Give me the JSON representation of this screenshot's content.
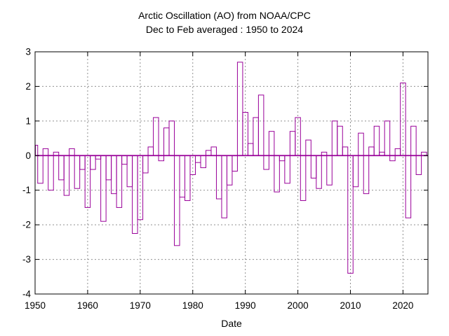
{
  "chart_data": {
    "type": "bar",
    "title": "Arctic Oscillation (AO) from NOAA/CPC",
    "subtitle": "Dec to Feb averaged : 1950 to 2024",
    "xlabel": "Date",
    "ylabel": "",
    "ylim": [
      -4,
      3
    ],
    "xlim": [
      1950,
      2024.5
    ],
    "grid": true,
    "legend": "none",
    "bar_color": "#990099",
    "grid_color": "#909090",
    "axis_color": "#000000",
    "xticks": [
      1950,
      1960,
      1970,
      1980,
      1990,
      2000,
      2010,
      2020
    ],
    "yticks": [
      3,
      2,
      1,
      0,
      -1,
      -2,
      -3,
      -4
    ],
    "years": [
      1950,
      1951,
      1952,
      1953,
      1954,
      1955,
      1956,
      1957,
      1958,
      1959,
      1960,
      1961,
      1962,
      1963,
      1964,
      1965,
      1966,
      1967,
      1968,
      1969,
      1970,
      1971,
      1972,
      1973,
      1974,
      1975,
      1976,
      1977,
      1978,
      1979,
      1980,
      1981,
      1982,
      1983,
      1984,
      1985,
      1986,
      1987,
      1988,
      1989,
      1990,
      1991,
      1992,
      1993,
      1994,
      1995,
      1996,
      1997,
      1998,
      1999,
      2000,
      2001,
      2002,
      2003,
      2004,
      2005,
      2006,
      2007,
      2008,
      2009,
      2010,
      2011,
      2012,
      2013,
      2014,
      2015,
      2016,
      2017,
      2018,
      2019,
      2020,
      2021,
      2022,
      2023,
      2024
    ],
    "values": [
      0.3,
      -0.8,
      0.2,
      -1.0,
      0.1,
      -0.7,
      -1.15,
      0.2,
      -0.95,
      -0.4,
      -1.5,
      -0.4,
      -0.1,
      -1.9,
      -0.7,
      -1.1,
      -1.5,
      -0.25,
      -0.9,
      -2.25,
      -1.85,
      -0.5,
      0.25,
      1.1,
      -0.15,
      0.8,
      1.0,
      -2.6,
      -1.2,
      -1.3,
      -0.55,
      -0.2,
      -0.35,
      0.15,
      0.25,
      -1.25,
      -1.8,
      -0.85,
      -0.45,
      2.7,
      1.25,
      0.35,
      1.1,
      1.75,
      -0.4,
      0.7,
      -1.05,
      -0.15,
      -0.8,
      0.7,
      1.1,
      -1.3,
      0.45,
      -0.65,
      -0.95,
      0.1,
      -0.85,
      1.0,
      0.85,
      0.25,
      -3.4,
      -0.9,
      0.65,
      -1.1,
      0.25,
      0.85,
      0.1,
      1.0,
      -0.15,
      0.2,
      2.1,
      -1.8,
      0.85,
      -0.55,
      0.1
    ]
  }
}
